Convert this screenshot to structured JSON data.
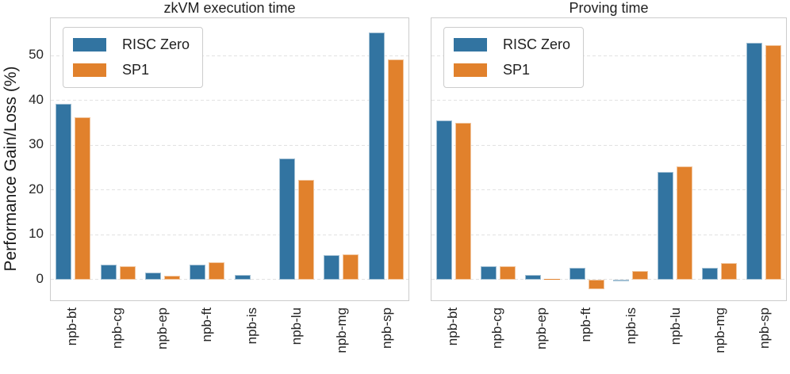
{
  "figure": {
    "ylabel": "Performance Gain/Loss (%)",
    "legend": [
      "RISC Zero",
      "SP1"
    ],
    "colors": {
      "risc_zero": "#3274a1",
      "sp1": "#e1812c"
    },
    "grid_color": "#e2e2e2",
    "spine_color": "#cccccc"
  },
  "chart_data": [
    {
      "type": "bar",
      "title": "zkVM execution time",
      "categories": [
        "npb-bt",
        "npb-cg",
        "npb-ep",
        "npb-ft",
        "npb-is",
        "npb-lu",
        "npb-mg",
        "npb-sp"
      ],
      "series": [
        {
          "name": "RISC Zero",
          "color": "#3274a1",
          "values": [
            39.3,
            3.3,
            1.5,
            3.4,
            1.0,
            27.0,
            5.4,
            55.3
          ]
        },
        {
          "name": "SP1",
          "color": "#e1812c",
          "values": [
            36.3,
            2.9,
            0.9,
            3.8,
            0.0,
            22.2,
            5.6,
            49.2
          ]
        }
      ],
      "xlabel": "",
      "ylabel": "Performance Gain/Loss (%)",
      "ylim": [
        -5,
        58.4
      ],
      "yticks": [
        0,
        10,
        20,
        30,
        40,
        50
      ],
      "grid": true,
      "legend_position": "upper left"
    },
    {
      "type": "bar",
      "title": "Proving time",
      "categories": [
        "npb-bt",
        "npb-cg",
        "npb-ep",
        "npb-ft",
        "npb-is",
        "npb-lu",
        "npb-mg",
        "npb-sp"
      ],
      "series": [
        {
          "name": "RISC Zero",
          "color": "#3274a1",
          "values": [
            35.5,
            2.9,
            1.0,
            2.6,
            -0.3,
            24.0,
            2.6,
            52.9
          ]
        },
        {
          "name": "SP1",
          "color": "#e1812c",
          "values": [
            35.1,
            3.0,
            0.2,
            -2.2,
            1.9,
            25.2,
            3.6,
            52.3
          ]
        }
      ],
      "xlabel": "",
      "ylabel": "",
      "ylim": [
        -5,
        58.4
      ],
      "yticks": [
        0,
        10,
        20,
        30,
        40,
        50
      ],
      "grid": true,
      "legend_position": "upper left"
    }
  ]
}
